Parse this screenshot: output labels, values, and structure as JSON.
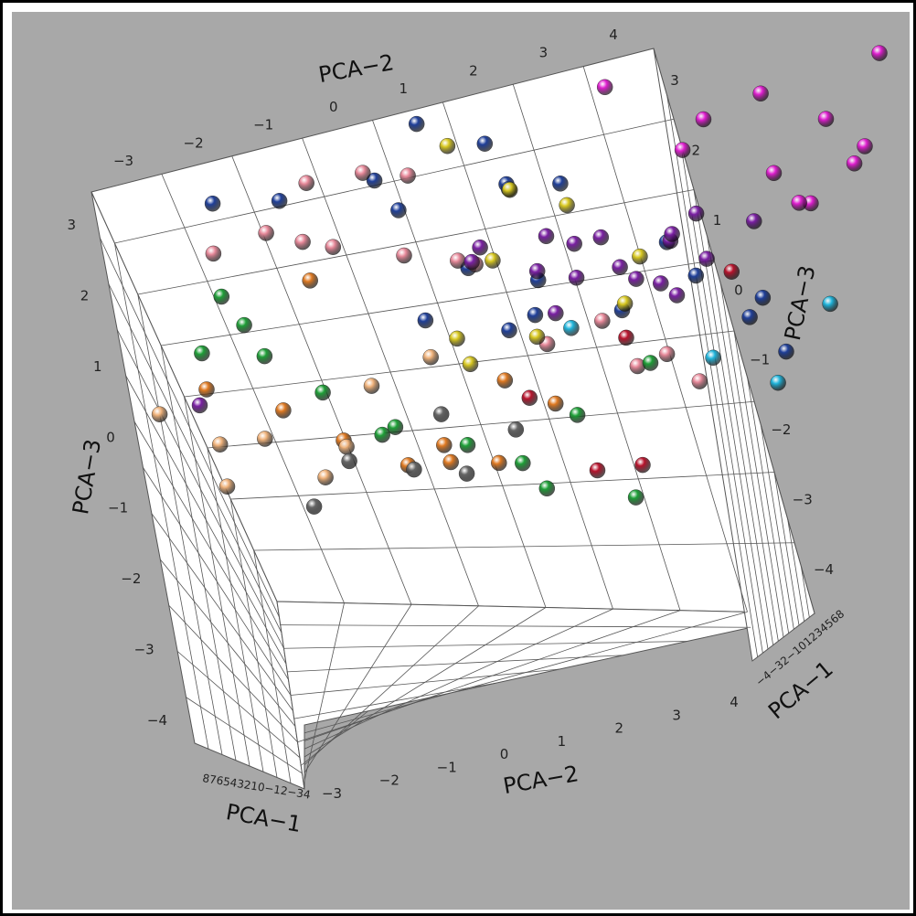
{
  "chart_data": {
    "type": "scatter",
    "projection": "3d",
    "axes": {
      "x": {
        "title": "PCA-1",
        "range": [
          -3,
          8
        ],
        "ticks": [
          "8",
          "7",
          "6",
          "5",
          "4",
          "3",
          "2",
          "1",
          "0",
          "-1",
          "-2",
          "-3",
          "-4"
        ]
      },
      "y": {
        "title": "PCA-2",
        "range": [
          -3,
          4
        ],
        "ticks": [
          "-3",
          "-2",
          "-1",
          "0",
          "1",
          "2",
          "3",
          "4"
        ]
      },
      "z": {
        "title": "PCA-3",
        "range": [
          -4,
          3
        ],
        "ticks": [
          "3",
          "2",
          "1",
          "0",
          "-1",
          "-2",
          "-3",
          "-4"
        ]
      }
    },
    "axis_titles": {
      "pca2_top": "PCA−2",
      "pca3_left": "PCA−3",
      "pca3_right": "PCA−3",
      "pca1_bottom_left": "PCA−1",
      "pca1_bottom_right": "PCA−1",
      "pca2_bottom": "PCA−2"
    },
    "tick_labels": {
      "top_pca2": [
        "−3",
        "−2",
        "−1",
        "0",
        "1",
        "2",
        "3",
        "4"
      ],
      "right_pca3": [
        "3",
        "2",
        "1",
        "0",
        "−1",
        "−2",
        "−3",
        "−4"
      ],
      "left_pca3": [
        "3",
        "2",
        "1",
        "0",
        "−1",
        "−2",
        "−3",
        "−4"
      ],
      "bottom_pca2": [
        "−3",
        "−2",
        "−1",
        "0",
        "1",
        "2",
        "3",
        "4"
      ],
      "bottom_left_pca1": "876543210−12−34",
      "bottom_right_pca1": "−4−32−101234568"
    },
    "grid": true,
    "legend": "none",
    "groups": [
      {
        "color": "#1f3f99",
        "points": [
          [
            -0.9,
            1.8,
            2.8
          ],
          [
            0.2,
            1.2,
            2.9
          ],
          [
            1.5,
            -0.3,
            2.4
          ],
          [
            -1.3,
            -2.4,
            1.9
          ],
          [
            -0.5,
            -1.8,
            1.7
          ],
          [
            2.0,
            0.4,
            1.2
          ],
          [
            1.1,
            -0.9,
            1.0
          ],
          [
            3.2,
            0.6,
            0.8
          ],
          [
            0.4,
            0.1,
            0.5
          ],
          [
            2.6,
            2.3,
            -0.2
          ],
          [
            1.8,
            1.4,
            -0.6
          ],
          [
            3.5,
            2.7,
            -0.9
          ],
          [
            0.9,
            0.8,
            0.2
          ],
          [
            2.2,
            -1.6,
            0.9
          ],
          [
            -0.4,
            0.7,
            -0.1
          ],
          [
            4.1,
            2.1,
            -1.6
          ],
          [
            1.4,
            0.3,
            -0.7
          ],
          [
            2.9,
            3.0,
            -1.5
          ],
          [
            0.1,
            -0.7,
            -0.4
          ],
          [
            3.8,
            1.5,
            -0.3
          ]
        ]
      },
      {
        "color": "#e8899a",
        "points": [
          [
            -0.7,
            -1.2,
            2.2
          ],
          [
            0.5,
            -0.9,
            1.9
          ],
          [
            -1.1,
            -1.9,
            1.4
          ],
          [
            1.2,
            -0.6,
            1.6
          ],
          [
            -0.3,
            -1.4,
            0.9
          ],
          [
            0.8,
            -0.2,
            0.4
          ],
          [
            2.1,
            0.9,
            -1.0
          ],
          [
            1.6,
            0.2,
            -1.3
          ],
          [
            2.8,
            1.3,
            -1.8
          ],
          [
            0.3,
            -2.1,
            0.6
          ],
          [
            -1.5,
            -2.6,
            1.1
          ],
          [
            1.9,
            -0.5,
            -0.2
          ],
          [
            3.0,
            0.7,
            -2.2
          ],
          [
            2.4,
            1.8,
            -2.0
          ],
          [
            0.9,
            -1.0,
            0.3
          ]
        ]
      },
      {
        "color": "#7a1fa3",
        "points": [
          [
            1.7,
            0.8,
            0.6
          ],
          [
            2.5,
            1.2,
            0.3
          ],
          [
            1.0,
            1.5,
            0.9
          ],
          [
            3.1,
            1.9,
            0.1
          ],
          [
            2.2,
            2.4,
            0.7
          ],
          [
            1.4,
            0.6,
            0.1
          ],
          [
            2.9,
            1.1,
            -0.4
          ],
          [
            3.6,
            2.2,
            0.4
          ],
          [
            0.6,
            0.3,
            0.8
          ],
          [
            2.0,
            1.7,
            -0.1
          ],
          [
            4.0,
            2.8,
            0.2
          ],
          [
            1.2,
            -0.2,
            0.2
          ],
          [
            2.7,
            0.5,
            -0.6
          ],
          [
            3.3,
            1.4,
            -0.8
          ],
          [
            1.9,
            2.9,
            0.5
          ],
          [
            -2.8,
            -3.1,
            -1.0
          ],
          [
            0.8,
            0.9,
            -0.3
          ],
          [
            2.4,
            2.0,
            -0.5
          ]
        ]
      },
      {
        "color": "#e01fd0",
        "points": [
          [
            5.2,
            3.1,
            1.9
          ],
          [
            5.8,
            4.0,
            0.9
          ],
          [
            4.6,
            2.4,
            1.6
          ],
          [
            6.3,
            3.5,
            0.3
          ],
          [
            5.0,
            2.9,
            0.6
          ],
          [
            4.2,
            2.1,
            1.2
          ],
          [
            5.6,
            3.7,
            1.4
          ],
          [
            6.8,
            4.3,
            2.1
          ],
          [
            3.7,
            1.6,
            2.4
          ],
          [
            4.9,
            3.3,
            0.2
          ],
          [
            6.0,
            2.6,
            -0.4
          ]
        ]
      },
      {
        "color": "#d8c81f",
        "points": [
          [
            0.7,
            0.4,
            2.5
          ],
          [
            1.4,
            0.7,
            1.5
          ],
          [
            2.3,
            1.0,
            0.9
          ],
          [
            0.2,
            -0.4,
            -0.7
          ],
          [
            1.8,
            0.0,
            -1.3
          ],
          [
            3.0,
            0.9,
            -1.1
          ],
          [
            2.6,
            1.6,
            0.0
          ],
          [
            1.1,
            -0.8,
            -1.6
          ],
          [
            0.4,
            0.5,
            0.7
          ]
        ]
      },
      {
        "color": "#1e9f37",
        "points": [
          [
            -2.1,
            -2.3,
            0.2
          ],
          [
            -2.5,
            -2.0,
            -0.1
          ],
          [
            -1.8,
            -2.6,
            0.5
          ],
          [
            -2.9,
            -2.7,
            0.0
          ],
          [
            -1.2,
            -1.4,
            -1.9
          ],
          [
            0.2,
            -0.9,
            -2.6
          ],
          [
            0.8,
            -0.5,
            -3.1
          ],
          [
            1.4,
            0.3,
            -2.4
          ],
          [
            -0.3,
            -1.6,
            -2.2
          ],
          [
            2.6,
            1.1,
            -1.9
          ],
          [
            1.0,
            -0.4,
            -3.6
          ],
          [
            1.7,
            0.5,
            -3.9
          ],
          [
            -0.8,
            -2.2,
            -1.5
          ]
        ]
      },
      {
        "color": "#e07a22",
        "points": [
          [
            -1.0,
            -1.6,
            0.6
          ],
          [
            -1.8,
            -2.4,
            -1.4
          ],
          [
            -0.3,
            -1.0,
            -2.4
          ],
          [
            0.1,
            -1.2,
            -2.9
          ],
          [
            -0.6,
            -1.5,
            -2.7
          ],
          [
            0.5,
            -0.7,
            -3.0
          ],
          [
            1.3,
            0.1,
            -2.2
          ],
          [
            -1.4,
            -1.9,
            -2.0
          ],
          [
            -2.6,
            -3.0,
            -0.8
          ],
          [
            0.9,
            -0.3,
            -1.7
          ]
        ]
      },
      {
        "color": "#f0b27a",
        "points": [
          [
            -3.5,
            -3.4,
            -0.9
          ],
          [
            -3.1,
            -2.9,
            -1.5
          ],
          [
            -2.8,
            -3.2,
            -2.4
          ],
          [
            -2.3,
            -2.6,
            -1.7
          ],
          [
            -2.0,
            -2.1,
            -2.4
          ],
          [
            -1.6,
            -1.8,
            -2.0
          ],
          [
            -0.9,
            -1.4,
            -1.2
          ],
          [
            0.0,
            -0.8,
            -1.0
          ]
        ]
      },
      {
        "color": "#666666",
        "points": [
          [
            -1.7,
            -1.8,
            -2.2
          ],
          [
            -1.1,
            -1.2,
            -2.5
          ],
          [
            -0.6,
            -0.7,
            -2.7
          ],
          [
            -2.3,
            -2.3,
            -2.8
          ],
          [
            -0.2,
            -0.9,
            -1.9
          ],
          [
            0.4,
            -0.2,
            -2.3
          ]
        ]
      },
      {
        "color": "#b8132c",
        "points": [
          [
            1.3,
            0.3,
            -3.3
          ],
          [
            1.9,
            0.7,
            -3.4
          ],
          [
            0.8,
            0.0,
            -1.9
          ],
          [
            2.4,
            1.0,
            -1.4
          ],
          [
            3.1,
            2.6,
            -0.3
          ]
        ]
      },
      {
        "color": "#1fb5dc",
        "points": [
          [
            4.0,
            3.4,
            -1.1
          ],
          [
            3.5,
            2.4,
            -2.4
          ],
          [
            1.7,
            0.6,
            -1.0
          ],
          [
            2.9,
            1.9,
            -1.8
          ]
        ]
      }
    ]
  }
}
